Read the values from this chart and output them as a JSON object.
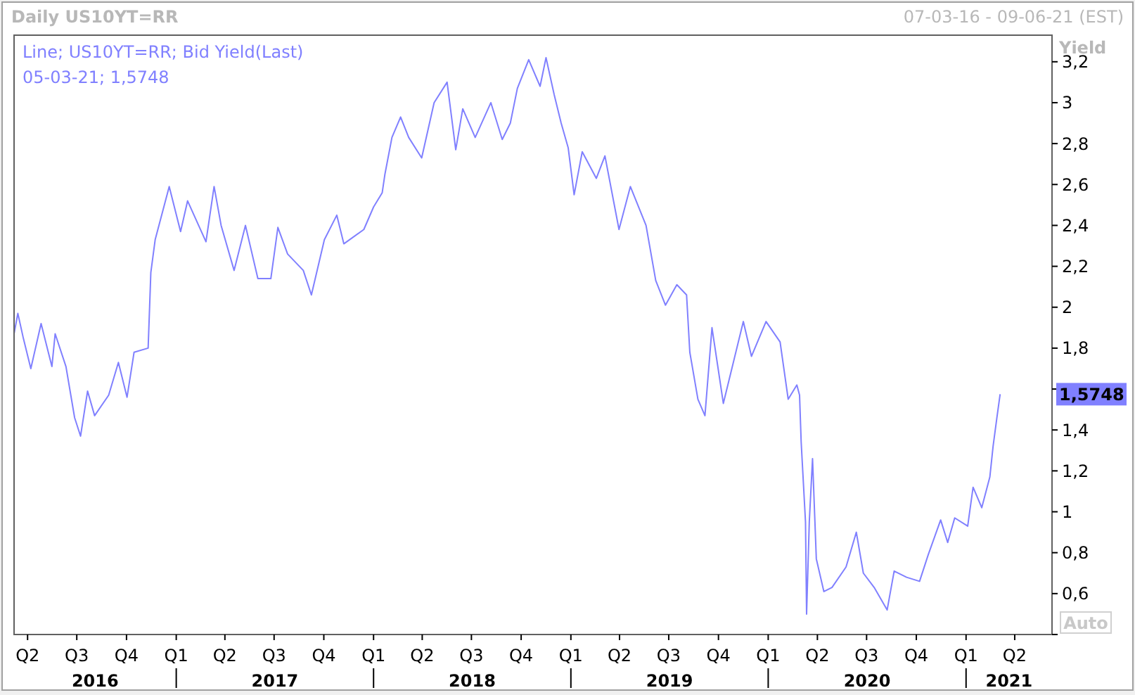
{
  "chart_data": {
    "type": "line",
    "title": "Daily US10YT=RR",
    "subtitle": "07-03-16 - 09-06-21 (EST)",
    "ylabel": "Yield",
    "legend": "top left",
    "grid": false,
    "marker": "none",
    "line_style": "solid",
    "xlim": [
      "2016-03-07",
      "2021-06-09"
    ],
    "xticks": [
      {
        "value": "2016-04-01",
        "label": "Q2"
      },
      {
        "value": "2016-07-01",
        "label": "Q3"
      },
      {
        "value": "2016-10-01",
        "label": "Q4"
      },
      {
        "value": "2017-01-01",
        "label": "Q1"
      },
      {
        "value": "2017-04-01",
        "label": "Q2"
      },
      {
        "value": "2017-07-01",
        "label": "Q3"
      },
      {
        "value": "2017-10-01",
        "label": "Q4"
      },
      {
        "value": "2018-01-01",
        "label": "Q1"
      },
      {
        "value": "2018-04-01",
        "label": "Q2"
      },
      {
        "value": "2018-07-01",
        "label": "Q3"
      },
      {
        "value": "2018-10-01",
        "label": "Q4"
      },
      {
        "value": "2019-01-01",
        "label": "Q1"
      },
      {
        "value": "2019-04-01",
        "label": "Q2"
      },
      {
        "value": "2019-07-01",
        "label": "Q3"
      },
      {
        "value": "2019-10-01",
        "label": "Q4"
      },
      {
        "value": "2020-01-01",
        "label": "Q1"
      },
      {
        "value": "2020-04-01",
        "label": "Q2"
      },
      {
        "value": "2020-07-01",
        "label": "Q3"
      },
      {
        "value": "2020-10-01",
        "label": "Q4"
      },
      {
        "value": "2021-01-01",
        "label": "Q1"
      },
      {
        "value": "2021-04-01",
        "label": "Q2"
      }
    ],
    "ylim": [
      0.4,
      3.33
    ],
    "yticks": [
      {
        "value": 0.4,
        "label": null
      },
      {
        "value": 0.6,
        "label": "0,6"
      },
      {
        "value": 0.8,
        "label": "0,8"
      },
      1,
      {
        "value": 1.2,
        "label": "1,2"
      },
      {
        "value": 1.4,
        "label": "1,4"
      },
      {
        "value": 1.6,
        "label": null
      },
      {
        "value": 1.8,
        "label": "1,8"
      },
      2,
      {
        "value": 2.2,
        "label": "2,2"
      },
      {
        "value": 2.4,
        "label": "2,4"
      },
      {
        "value": 2.6,
        "label": "2,6"
      },
      {
        "value": 2.8,
        "label": "2,8"
      },
      3,
      {
        "value": 3.2,
        "label": "3,2"
      }
    ],
    "annotations": [
      "05-03-21; 1,5748",
      "1,5748",
      "2016",
      "2017",
      "2018",
      "2019",
      "2020",
      "2021",
      "Auto"
    ],
    "series": [
      {
        "name": "Line; US10YT=RR; Bid Yield(Last)",
        "color": "#8080ff",
        "x": [
          "2016-03-07",
          "2016-03-14",
          "2016-03-24",
          "2016-04-07",
          "2016-04-26",
          "2016-05-16",
          "2016-05-22",
          "2016-06-11",
          "2016-06-27",
          "2016-07-08",
          "2016-07-21",
          "2016-08-03",
          "2016-08-29",
          "2016-09-16",
          "2016-10-02",
          "2016-10-15",
          "2016-11-10",
          "2016-11-15",
          "2016-11-23",
          "2016-12-19",
          "2017-01-09",
          "2017-01-22",
          "2017-02-25",
          "2017-03-12",
          "2017-03-25",
          "2017-04-18",
          "2017-05-09",
          "2017-06-01",
          "2017-06-25",
          "2017-07-08",
          "2017-07-26",
          "2017-08-24",
          "2017-09-08",
          "2017-10-02",
          "2017-10-25",
          "2017-11-07",
          "2017-12-14",
          "2018-01-01",
          "2018-01-17",
          "2018-01-22",
          "2018-02-04",
          "2018-02-20",
          "2018-03-07",
          "2018-03-31",
          "2018-04-23",
          "2018-05-17",
          "2018-06-02",
          "2018-06-15",
          "2018-07-08",
          "2018-08-06",
          "2018-08-27",
          "2018-09-11",
          "2018-09-24",
          "2018-10-15",
          "2018-11-05",
          "2018-11-16",
          "2018-12-01",
          "2018-12-14",
          "2018-12-27",
          "2019-01-07",
          "2019-01-22",
          "2019-02-17",
          "2019-03-05",
          "2019-03-31",
          "2019-04-21",
          "2019-05-20",
          "2019-06-07",
          "2019-06-25",
          "2019-07-16",
          "2019-08-03",
          "2019-08-09",
          "2019-08-24",
          "2019-09-06",
          "2019-09-19",
          "2019-10-10",
          "2019-11-16",
          "2019-12-01",
          "2019-12-28",
          "2020-01-23",
          "2020-02-07",
          "2020-02-23",
          "2020-02-28",
          "2020-03-02",
          "2020-03-10",
          "2020-03-12",
          "2020-03-17",
          "2020-03-23",
          "2020-03-30",
          "2020-04-13",
          "2020-04-28",
          "2020-05-24",
          "2020-06-12",
          "2020-06-25",
          "2020-07-15",
          "2020-08-08",
          "2020-08-21",
          "2020-09-13",
          "2020-10-07",
          "2020-10-23",
          "2020-11-15",
          "2020-11-28",
          "2020-12-11",
          "2021-01-04",
          "2021-01-14",
          "2021-01-30",
          "2021-02-14",
          "2021-02-20",
          "2021-02-27",
          "2021-03-05"
        ],
        "values": [
          1.87,
          1.97,
          1.85,
          1.7,
          1.92,
          1.71,
          1.87,
          1.71,
          1.46,
          1.37,
          1.59,
          1.47,
          1.57,
          1.73,
          1.56,
          1.78,
          1.8,
          2.17,
          2.33,
          2.59,
          2.37,
          2.52,
          2.32,
          2.59,
          2.4,
          2.18,
          2.4,
          2.14,
          2.14,
          2.39,
          2.26,
          2.18,
          2.06,
          2.33,
          2.45,
          2.31,
          2.38,
          2.49,
          2.56,
          2.65,
          2.83,
          2.93,
          2.83,
          2.73,
          3.0,
          3.1,
          2.77,
          2.97,
          2.83,
          3.0,
          2.82,
          2.9,
          3.07,
          3.21,
          3.08,
          3.22,
          3.04,
          2.9,
          2.78,
          2.55,
          2.76,
          2.63,
          2.74,
          2.38,
          2.59,
          2.4,
          2.13,
          2.01,
          2.11,
          2.06,
          1.78,
          1.55,
          1.47,
          1.9,
          1.53,
          1.93,
          1.76,
          1.93,
          1.83,
          1.55,
          1.62,
          1.57,
          1.34,
          0.95,
          0.5,
          0.95,
          1.26,
          0.77,
          0.61,
          0.63,
          0.73,
          0.9,
          0.7,
          0.63,
          0.52,
          0.71,
          0.68,
          0.66,
          0.79,
          0.96,
          0.85,
          0.97,
          0.93,
          1.12,
          1.02,
          1.17,
          1.32,
          1.46,
          1.5748
        ]
      }
    ]
  }
}
